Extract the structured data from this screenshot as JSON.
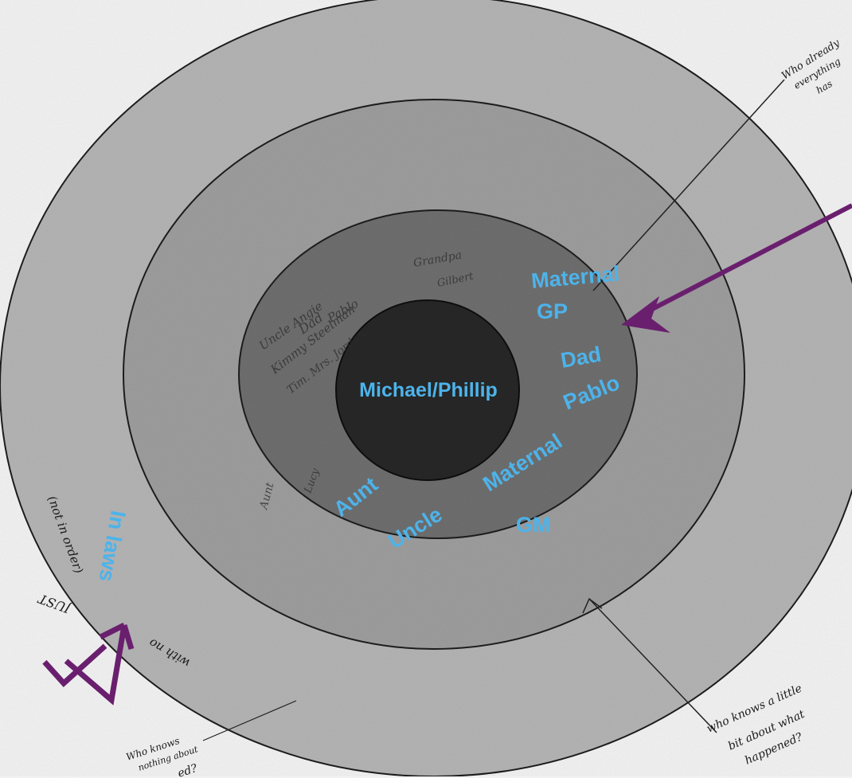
{
  "center_label": "Michael/Phillip",
  "inner_ring_labels": {
    "maternal_gp_1": "Maternal",
    "maternal_gp_2": "GP",
    "dad_1": "Dad",
    "dad_2": "Pablo",
    "aunt": "Aunt",
    "uncle": "Uncle",
    "maternal_gm_1": "Maternal",
    "maternal_gm_2": "GM"
  },
  "outer_ring_label": "In laws",
  "handwritten": {
    "top_right_1": "Who already",
    "top_right_2": "everything",
    "top_right_3": "has",
    "bottom_right_1": "who knows a little",
    "bottom_right_2": "bit about what",
    "bottom_right_3": "happened?",
    "bottom_left_1": "Who knows",
    "bottom_left_2": "nothing about",
    "bottom_left_3": "ed?"
  },
  "colors": {
    "label_blue": "#4db3ea",
    "arrow_purple": "#6a1f6e",
    "ring_outer": "#b4b4b4",
    "ring_second": "#9d9d9d",
    "ring_third": "#6e6e6e",
    "center": "#262626"
  }
}
